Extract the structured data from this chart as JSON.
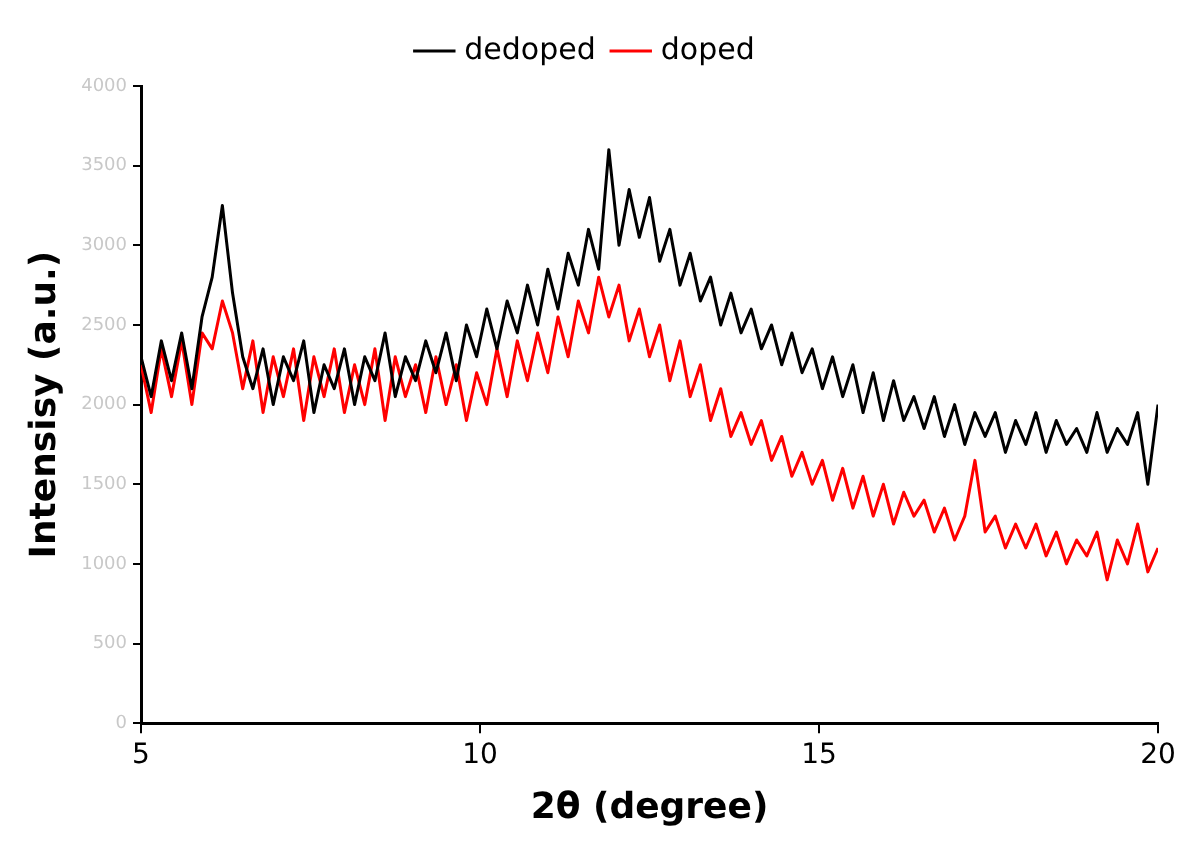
{
  "chart_data": {
    "type": "line",
    "xlabel": "2θ (degree)",
    "ylabel": "Intensisy (a.u.)",
    "legend": "top",
    "grid": false,
    "marker": "none",
    "xlim": [
      5,
      20
    ],
    "xticks": [
      5,
      10,
      15,
      20
    ],
    "ylim": [
      0,
      4000
    ],
    "yticks": [
      0,
      500,
      1000,
      1500,
      2000,
      2500,
      3000,
      3500,
      4000
    ],
    "x": [
      5.0,
      5.15,
      5.3,
      5.45,
      5.6,
      5.75,
      5.9,
      6.05,
      6.2,
      6.35,
      6.5,
      6.65,
      6.8,
      6.95,
      7.1,
      7.25,
      7.4,
      7.55,
      7.7,
      7.85,
      8.0,
      8.15,
      8.3,
      8.45,
      8.6,
      8.75,
      8.9,
      9.05,
      9.2,
      9.35,
      9.5,
      9.65,
      9.8,
      9.95,
      10.1,
      10.25,
      10.4,
      10.55,
      10.7,
      10.85,
      11.0,
      11.15,
      11.3,
      11.45,
      11.6,
      11.75,
      11.9,
      12.05,
      12.2,
      12.35,
      12.5,
      12.65,
      12.8,
      12.95,
      13.1,
      13.25,
      13.4,
      13.55,
      13.7,
      13.85,
      14.0,
      14.15,
      14.3,
      14.45,
      14.6,
      14.75,
      14.9,
      15.05,
      15.2,
      15.35,
      15.5,
      15.65,
      15.8,
      15.95,
      16.1,
      16.25,
      16.4,
      16.55,
      16.7,
      16.85,
      17.0,
      17.15,
      17.3,
      17.45,
      17.6,
      17.75,
      17.9,
      18.05,
      18.2,
      18.35,
      18.5,
      18.65,
      18.8,
      18.95,
      19.1,
      19.25,
      19.4,
      19.55,
      19.7,
      19.85,
      20.0
    ],
    "series": [
      {
        "name": "dedoped",
        "color": "#000000",
        "values": [
          2300,
          2050,
          2400,
          2150,
          2450,
          2100,
          2550,
          2800,
          3250,
          2700,
          2300,
          2100,
          2350,
          2000,
          2300,
          2150,
          2400,
          1950,
          2250,
          2100,
          2350,
          2000,
          2300,
          2150,
          2450,
          2050,
          2300,
          2150,
          2400,
          2200,
          2450,
          2150,
          2500,
          2300,
          2600,
          2350,
          2650,
          2450,
          2750,
          2500,
          2850,
          2600,
          2950,
          2750,
          3100,
          2850,
          3600,
          3000,
          3350,
          3050,
          3300,
          2900,
          3100,
          2750,
          2950,
          2650,
          2800,
          2500,
          2700,
          2450,
          2600,
          2350,
          2500,
          2250,
          2450,
          2200,
          2350,
          2100,
          2300,
          2050,
          2250,
          1950,
          2200,
          1900,
          2150,
          1900,
          2050,
          1850,
          2050,
          1800,
          2000,
          1750,
          1950,
          1800,
          1950,
          1700,
          1900,
          1750,
          1950,
          1700,
          1900,
          1750,
          1850,
          1700,
          1950,
          1700,
          1850,
          1750,
          1950,
          1500,
          2000
        ]
      },
      {
        "name": "doped",
        "color": "#ff0000",
        "values": [
          2250,
          1950,
          2350,
          2050,
          2400,
          2000,
          2450,
          2350,
          2650,
          2450,
          2100,
          2400,
          1950,
          2300,
          2050,
          2350,
          1900,
          2300,
          2050,
          2350,
          1950,
          2250,
          2000,
          2350,
          1900,
          2300,
          2050,
          2250,
          1950,
          2300,
          2000,
          2250,
          1900,
          2200,
          2000,
          2350,
          2050,
          2400,
          2150,
          2450,
          2200,
          2550,
          2300,
          2650,
          2450,
          2800,
          2550,
          2750,
          2400,
          2600,
          2300,
          2500,
          2150,
          2400,
          2050,
          2250,
          1900,
          2100,
          1800,
          1950,
          1750,
          1900,
          1650,
          1800,
          1550,
          1700,
          1500,
          1650,
          1400,
          1600,
          1350,
          1550,
          1300,
          1500,
          1250,
          1450,
          1300,
          1400,
          1200,
          1350,
          1150,
          1300,
          1650,
          1200,
          1300,
          1100,
          1250,
          1100,
          1250,
          1050,
          1200,
          1000,
          1150,
          1050,
          1200,
          900,
          1150,
          1000,
          1250,
          950,
          1100
        ]
      }
    ]
  }
}
